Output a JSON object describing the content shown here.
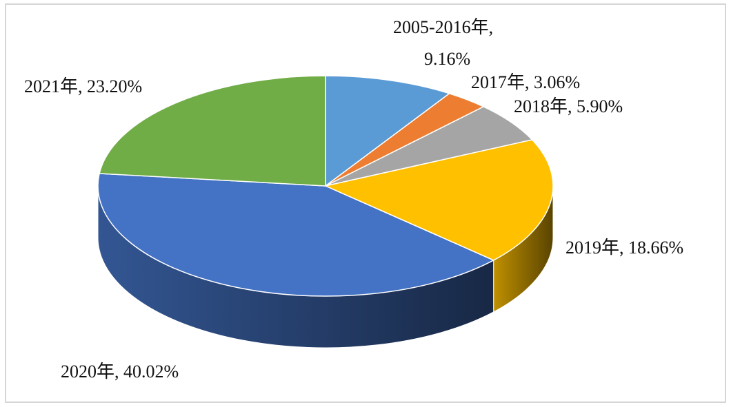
{
  "chart_data": {
    "type": "pie3d",
    "categories": [
      "2005-2016年",
      "2017年",
      "2018年",
      "2019年",
      "2020年",
      "2021年"
    ],
    "values": [
      9.16,
      3.06,
      5.9,
      18.66,
      40.02,
      23.2
    ],
    "value_labels": [
      "9.16%",
      "3.06%",
      "5.90%",
      "18.66%",
      "40.02%",
      "23.20%"
    ],
    "label_separator": ", ",
    "colors": [
      "#5b9bd5",
      "#ed7d31",
      "#a5a5a5",
      "#ffc000",
      "#4472c4",
      "#70ad47"
    ]
  }
}
